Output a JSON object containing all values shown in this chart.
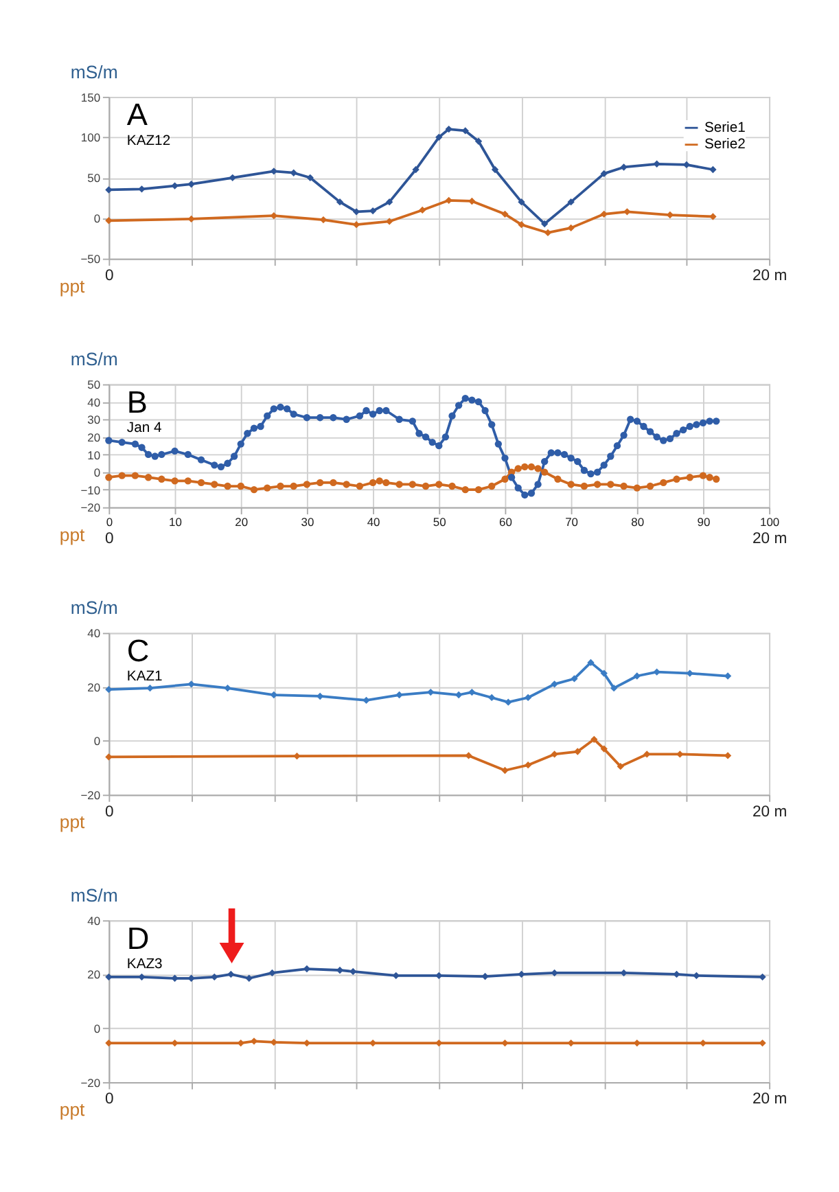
{
  "chart_data": [
    {
      "type": "line",
      "ylabel": "mS/m",
      "annotations": [
        "A",
        "KAZ12",
        "ppt"
      ],
      "marker": "diamond",
      "grid": true,
      "legend": "top right",
      "xlim": [
        0,
        20
      ],
      "xticks": [
        {
          "value": 0,
          "label": "0"
        },
        {
          "value": 2.5,
          "label": null
        },
        {
          "value": 5,
          "label": null
        },
        {
          "value": 7.5,
          "label": null
        },
        {
          "value": 10,
          "label": null
        },
        {
          "value": 12.5,
          "label": null
        },
        {
          "value": 15,
          "label": null
        },
        {
          "value": 17.5,
          "label": null
        },
        {
          "value": 20,
          "label": "20 m"
        }
      ],
      "ylim": [
        -50,
        150
      ],
      "yticks": [
        -50,
        0,
        50,
        100,
        150
      ],
      "series": [
        {
          "name": "Serie1",
          "color": "#2e5597",
          "x": [
            0,
            1,
            2,
            2.5,
            3.75,
            5,
            5.6,
            6.1,
            7,
            7.5,
            8,
            8.5,
            9.3,
            10,
            10.3,
            10.8,
            11.2,
            11.7,
            12.5,
            13.2,
            14,
            15,
            15.6,
            16.6,
            17.5,
            18.3
          ],
          "values": [
            35,
            36,
            40,
            42,
            50,
            58,
            56,
            50,
            20,
            8,
            9,
            20,
            60,
            100,
            110,
            108,
            95,
            60,
            20,
            -7,
            20,
            55,
            63,
            67,
            66,
            60
          ]
        },
        {
          "name": "Serie2",
          "color": "#d0691f",
          "x": [
            0,
            2.5,
            5,
            6.5,
            7.5,
            8.5,
            9.5,
            10.3,
            11,
            12,
            12.5,
            13.3,
            14,
            15,
            15.7,
            17,
            18.3
          ],
          "values": [
            -3,
            -1,
            3,
            -2,
            -8,
            -4,
            10,
            22,
            21,
            5,
            -8,
            -18,
            -12,
            5,
            8,
            4,
            2
          ]
        }
      ]
    },
    {
      "type": "line",
      "ylabel": "mS/m",
      "annotations": [
        "B",
        "Jan 4",
        "ppt"
      ],
      "marker": "circle",
      "grid": true,
      "xlim": [
        0,
        100
      ],
      "xticks": [
        0,
        10,
        20,
        30,
        40,
        50,
        60,
        70,
        80,
        90,
        100
      ],
      "x2lim": [
        0,
        20
      ],
      "x2ticks": [
        {
          "value": 0,
          "label": "0"
        },
        {
          "value": 20,
          "label": "20 m"
        }
      ],
      "ylim": [
        -20,
        50
      ],
      "yticks": [
        -20,
        -10,
        0,
        10,
        20,
        30,
        40,
        50
      ],
      "series": [
        {
          "color": "#2f5da8",
          "x": [
            0,
            2,
            4,
            5,
            6,
            7,
            8,
            10,
            12,
            14,
            16,
            17,
            18,
            19,
            20,
            21,
            22,
            23,
            24,
            25,
            26,
            27,
            28,
            30,
            32,
            34,
            36,
            38,
            39,
            40,
            41,
            42,
            44,
            46,
            47,
            48,
            49,
            50,
            51,
            52,
            53,
            54,
            55,
            56,
            57,
            58,
            59,
            60,
            61,
            62,
            63,
            64,
            65,
            66,
            67,
            68,
            69,
            70,
            71,
            72,
            73,
            74,
            75,
            76,
            77,
            78,
            79,
            80,
            81,
            82,
            83,
            84,
            85,
            86,
            87,
            88,
            89,
            90,
            91,
            92
          ],
          "values": [
            18,
            17,
            16,
            14,
            10,
            9,
            10,
            12,
            10,
            7,
            4,
            3,
            5,
            9,
            16,
            22,
            25,
            26,
            32,
            36,
            37,
            36,
            33,
            31,
            31,
            31,
            30,
            32,
            35,
            33,
            35,
            35,
            30,
            29,
            22,
            20,
            17,
            15,
            20,
            32,
            38,
            42,
            41,
            40,
            35,
            27,
            16,
            8,
            -3,
            -9,
            -13,
            -12,
            -7,
            6,
            11,
            11,
            10,
            8,
            6,
            1,
            -1,
            0,
            4,
            9,
            15,
            21,
            30,
            29,
            26,
            23,
            20,
            18,
            19,
            22,
            24,
            26,
            27,
            28,
            29,
            29
          ]
        },
        {
          "color": "#d0691f",
          "x": [
            0,
            2,
            4,
            6,
            8,
            10,
            12,
            14,
            16,
            18,
            20,
            22,
            24,
            26,
            28,
            30,
            32,
            34,
            36,
            38,
            40,
            41,
            42,
            44,
            46,
            48,
            50,
            52,
            54,
            56,
            58,
            60,
            61,
            62,
            63,
            64,
            65,
            66,
            68,
            70,
            72,
            74,
            76,
            78,
            80,
            82,
            84,
            86,
            88,
            90,
            91,
            92
          ],
          "values": [
            -3,
            -2,
            -2,
            -3,
            -4,
            -5,
            -5,
            -6,
            -7,
            -8,
            -8,
            -10,
            -9,
            -8,
            -8,
            -7,
            -6,
            -6,
            -7,
            -8,
            -6,
            -5,
            -6,
            -7,
            -7,
            -8,
            -7,
            -8,
            -10,
            -10,
            -8,
            -4,
            0,
            2,
            3,
            3,
            2,
            0,
            -4,
            -7,
            -8,
            -7,
            -7,
            -8,
            -9,
            -8,
            -6,
            -4,
            -3,
            -2,
            -3,
            -4
          ]
        }
      ]
    },
    {
      "type": "line",
      "ylabel": "mS/m",
      "annotations": [
        "C",
        "KAZ1",
        "ppt"
      ],
      "marker": "diamond",
      "grid": true,
      "xlim": [
        0,
        20
      ],
      "xticks": [
        {
          "value": 0,
          "label": "0"
        },
        {
          "value": 2.5,
          "label": null
        },
        {
          "value": 5,
          "label": null
        },
        {
          "value": 7.5,
          "label": null
        },
        {
          "value": 10,
          "label": null
        },
        {
          "value": 12.5,
          "label": null
        },
        {
          "value": 15,
          "label": null
        },
        {
          "value": 17.5,
          "label": null
        },
        {
          "value": 20,
          "label": "20 m"
        }
      ],
      "ylim": [
        -20,
        40
      ],
      "yticks": [
        -20,
        0,
        20,
        40
      ],
      "series": [
        {
          "color": "#3a7cc4",
          "x": [
            0,
            1.25,
            2.5,
            3.6,
            5,
            6.4,
            7.8,
            8.8,
            9.75,
            10.6,
            11,
            11.6,
            12.1,
            12.7,
            13.5,
            14.1,
            14.6,
            15,
            15.3,
            16,
            16.6,
            17.6,
            18.75
          ],
          "values": [
            19,
            19.5,
            21,
            19.5,
            17,
            16.5,
            15,
            17,
            18,
            17,
            18,
            16,
            14.3,
            16,
            21,
            23,
            29,
            25,
            19.5,
            24,
            25.5,
            25,
            24
          ]
        },
        {
          "color": "#d0691f",
          "x": [
            0,
            5.7,
            10.9,
            12,
            12.7,
            13.5,
            14.2,
            14.7,
            15,
            15.5,
            16.3,
            17.3,
            18.75
          ],
          "values": [
            -6,
            -5.7,
            -5.5,
            -11,
            -9,
            -5,
            -4,
            0.5,
            -3,
            -9.5,
            -5,
            -5,
            -5.5
          ]
        }
      ]
    },
    {
      "type": "line",
      "ylabel": "mS/m",
      "annotations": [
        "D",
        "KAZ3",
        "ppt"
      ],
      "marker": "diamond",
      "grid": true,
      "xlim": [
        0,
        20
      ],
      "xticks": [
        {
          "value": 0,
          "label": "0"
        },
        {
          "value": 2.5,
          "label": null
        },
        {
          "value": 5,
          "label": null
        },
        {
          "value": 7.5,
          "label": null
        },
        {
          "value": 10,
          "label": null
        },
        {
          "value": 12.5,
          "label": null
        },
        {
          "value": 15,
          "label": null
        },
        {
          "value": 17.5,
          "label": null
        },
        {
          "value": 20,
          "label": "20 m"
        }
      ],
      "ylim": [
        -20,
        40
      ],
      "yticks": [
        -20,
        0,
        20,
        40
      ],
      "series": [
        {
          "color": "#2e5597",
          "x": [
            0,
            1,
            2,
            2.5,
            3.2,
            3.7,
            4.25,
            4.95,
            6,
            7,
            7.4,
            8.7,
            10,
            11.4,
            12.5,
            13.5,
            15.6,
            17.2,
            17.8,
            19.8
          ],
          "values": [
            19,
            19,
            18.5,
            18.5,
            19,
            20,
            18.5,
            20.5,
            22,
            21.5,
            21,
            19.5,
            19.5,
            19.2,
            20,
            20.5,
            20.5,
            20,
            19.5,
            19
          ]
        },
        {
          "color": "#d0691f",
          "x": [
            0,
            2,
            4,
            4.4,
            5,
            6,
            8,
            10,
            12,
            14,
            16,
            18,
            19.8
          ],
          "values": [
            -5.5,
            -5.5,
            -5.5,
            -4.8,
            -5.2,
            -5.5,
            -5.5,
            -5.5,
            -5.5,
            -5.5,
            -5.5,
            -5.5,
            -5.5
          ]
        }
      ]
    }
  ]
}
